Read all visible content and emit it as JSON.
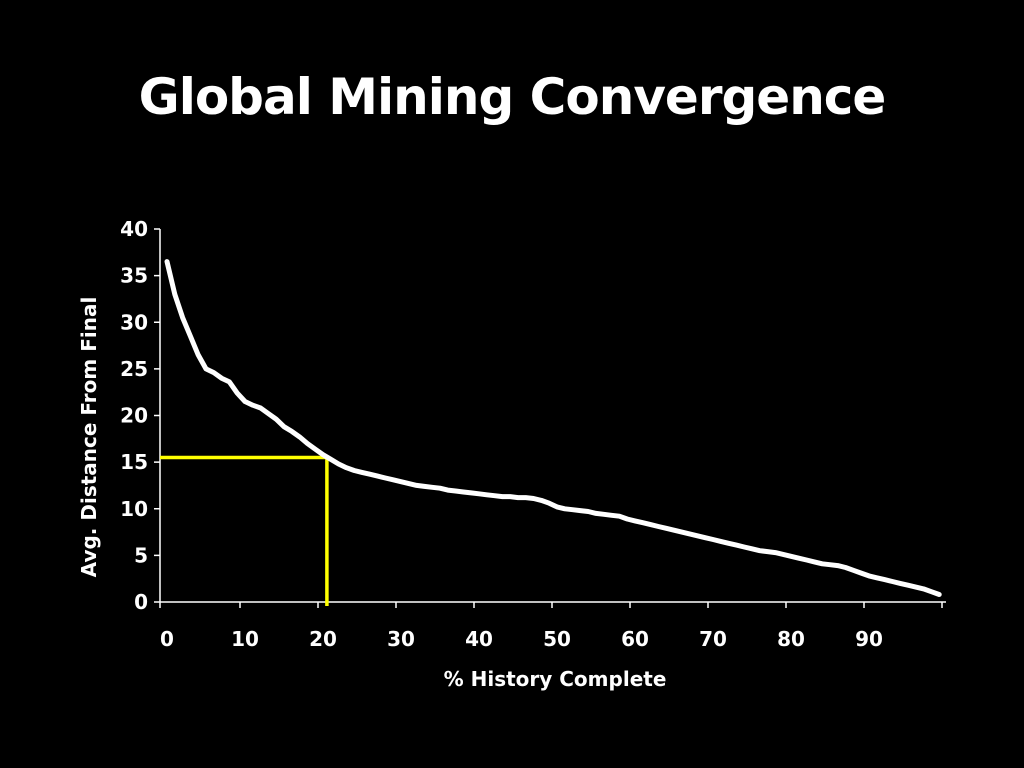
{
  "slide": {
    "title": "Global Mining Convergence"
  },
  "colors": {
    "background": "#000000",
    "curve": "#ffffff",
    "axis": "#ffffff",
    "highlight": "#ffff00"
  },
  "chart_data": {
    "type": "line",
    "title": "",
    "xlabel": "% History Complete",
    "ylabel": "Avg. Distance From Final",
    "xlim": [
      0,
      100
    ],
    "ylim": [
      0,
      40
    ],
    "x_ticks": [
      0,
      10,
      20,
      30,
      40,
      50,
      60,
      70,
      80,
      90
    ],
    "y_ticks": [
      0,
      5,
      10,
      15,
      20,
      25,
      30,
      35,
      40
    ],
    "grid": false,
    "legend": "none",
    "series": [
      {
        "x": [
          0,
          1,
          2,
          3,
          4,
          5,
          6,
          7,
          8,
          9,
          10,
          11,
          12,
          13,
          14,
          15,
          16,
          17,
          18,
          19,
          20,
          21,
          22,
          23,
          24,
          25,
          26,
          27,
          28,
          29,
          30,
          31,
          32,
          33,
          34,
          35,
          36,
          37,
          38,
          39,
          40,
          41,
          42,
          43,
          44,
          45,
          46,
          47,
          48,
          49,
          50,
          51,
          52,
          53,
          54,
          55,
          56,
          57,
          58,
          59,
          60,
          61,
          62,
          63,
          64,
          65,
          66,
          67,
          68,
          69,
          70,
          71,
          72,
          73,
          74,
          75,
          76,
          77,
          78,
          79,
          80,
          81,
          82,
          83,
          84,
          85,
          86,
          87,
          88,
          89,
          90,
          91,
          92,
          93,
          94,
          95,
          96,
          97,
          98,
          99
        ],
        "values": [
          36.5,
          33,
          30.5,
          28.5,
          26.5,
          25,
          24.6,
          24,
          23.6,
          22.4,
          21.5,
          21.1,
          20.8,
          20.2,
          19.6,
          18.8,
          18.3,
          17.7,
          17,
          16.4,
          15.8,
          15.3,
          14.8,
          14.4,
          14.1,
          13.9,
          13.7,
          13.5,
          13.3,
          13.1,
          12.9,
          12.7,
          12.5,
          12.4,
          12.3,
          12.2,
          12,
          11.9,
          11.8,
          11.7,
          11.6,
          11.5,
          11.4,
          11.3,
          11.3,
          11.2,
          11.2,
          11.1,
          10.9,
          10.6,
          10.2,
          10,
          9.9,
          9.8,
          9.7,
          9.5,
          9.4,
          9.3,
          9.2,
          8.9,
          8.7,
          8.5,
          8.3,
          8.1,
          7.9,
          7.7,
          7.5,
          7.3,
          7.1,
          6.9,
          6.7,
          6.5,
          6.3,
          6.1,
          5.9,
          5.7,
          5.5,
          5.4,
          5.3,
          5.1,
          4.9,
          4.7,
          4.5,
          4.3,
          4.1,
          4,
          3.9,
          3.7,
          3.4,
          3.1,
          2.8,
          2.6,
          2.4,
          2.2,
          2,
          1.8,
          1.6,
          1.4,
          1.1,
          0.8
        ]
      }
    ],
    "marker": {
      "x": 20.5,
      "y": 15.5
    }
  }
}
